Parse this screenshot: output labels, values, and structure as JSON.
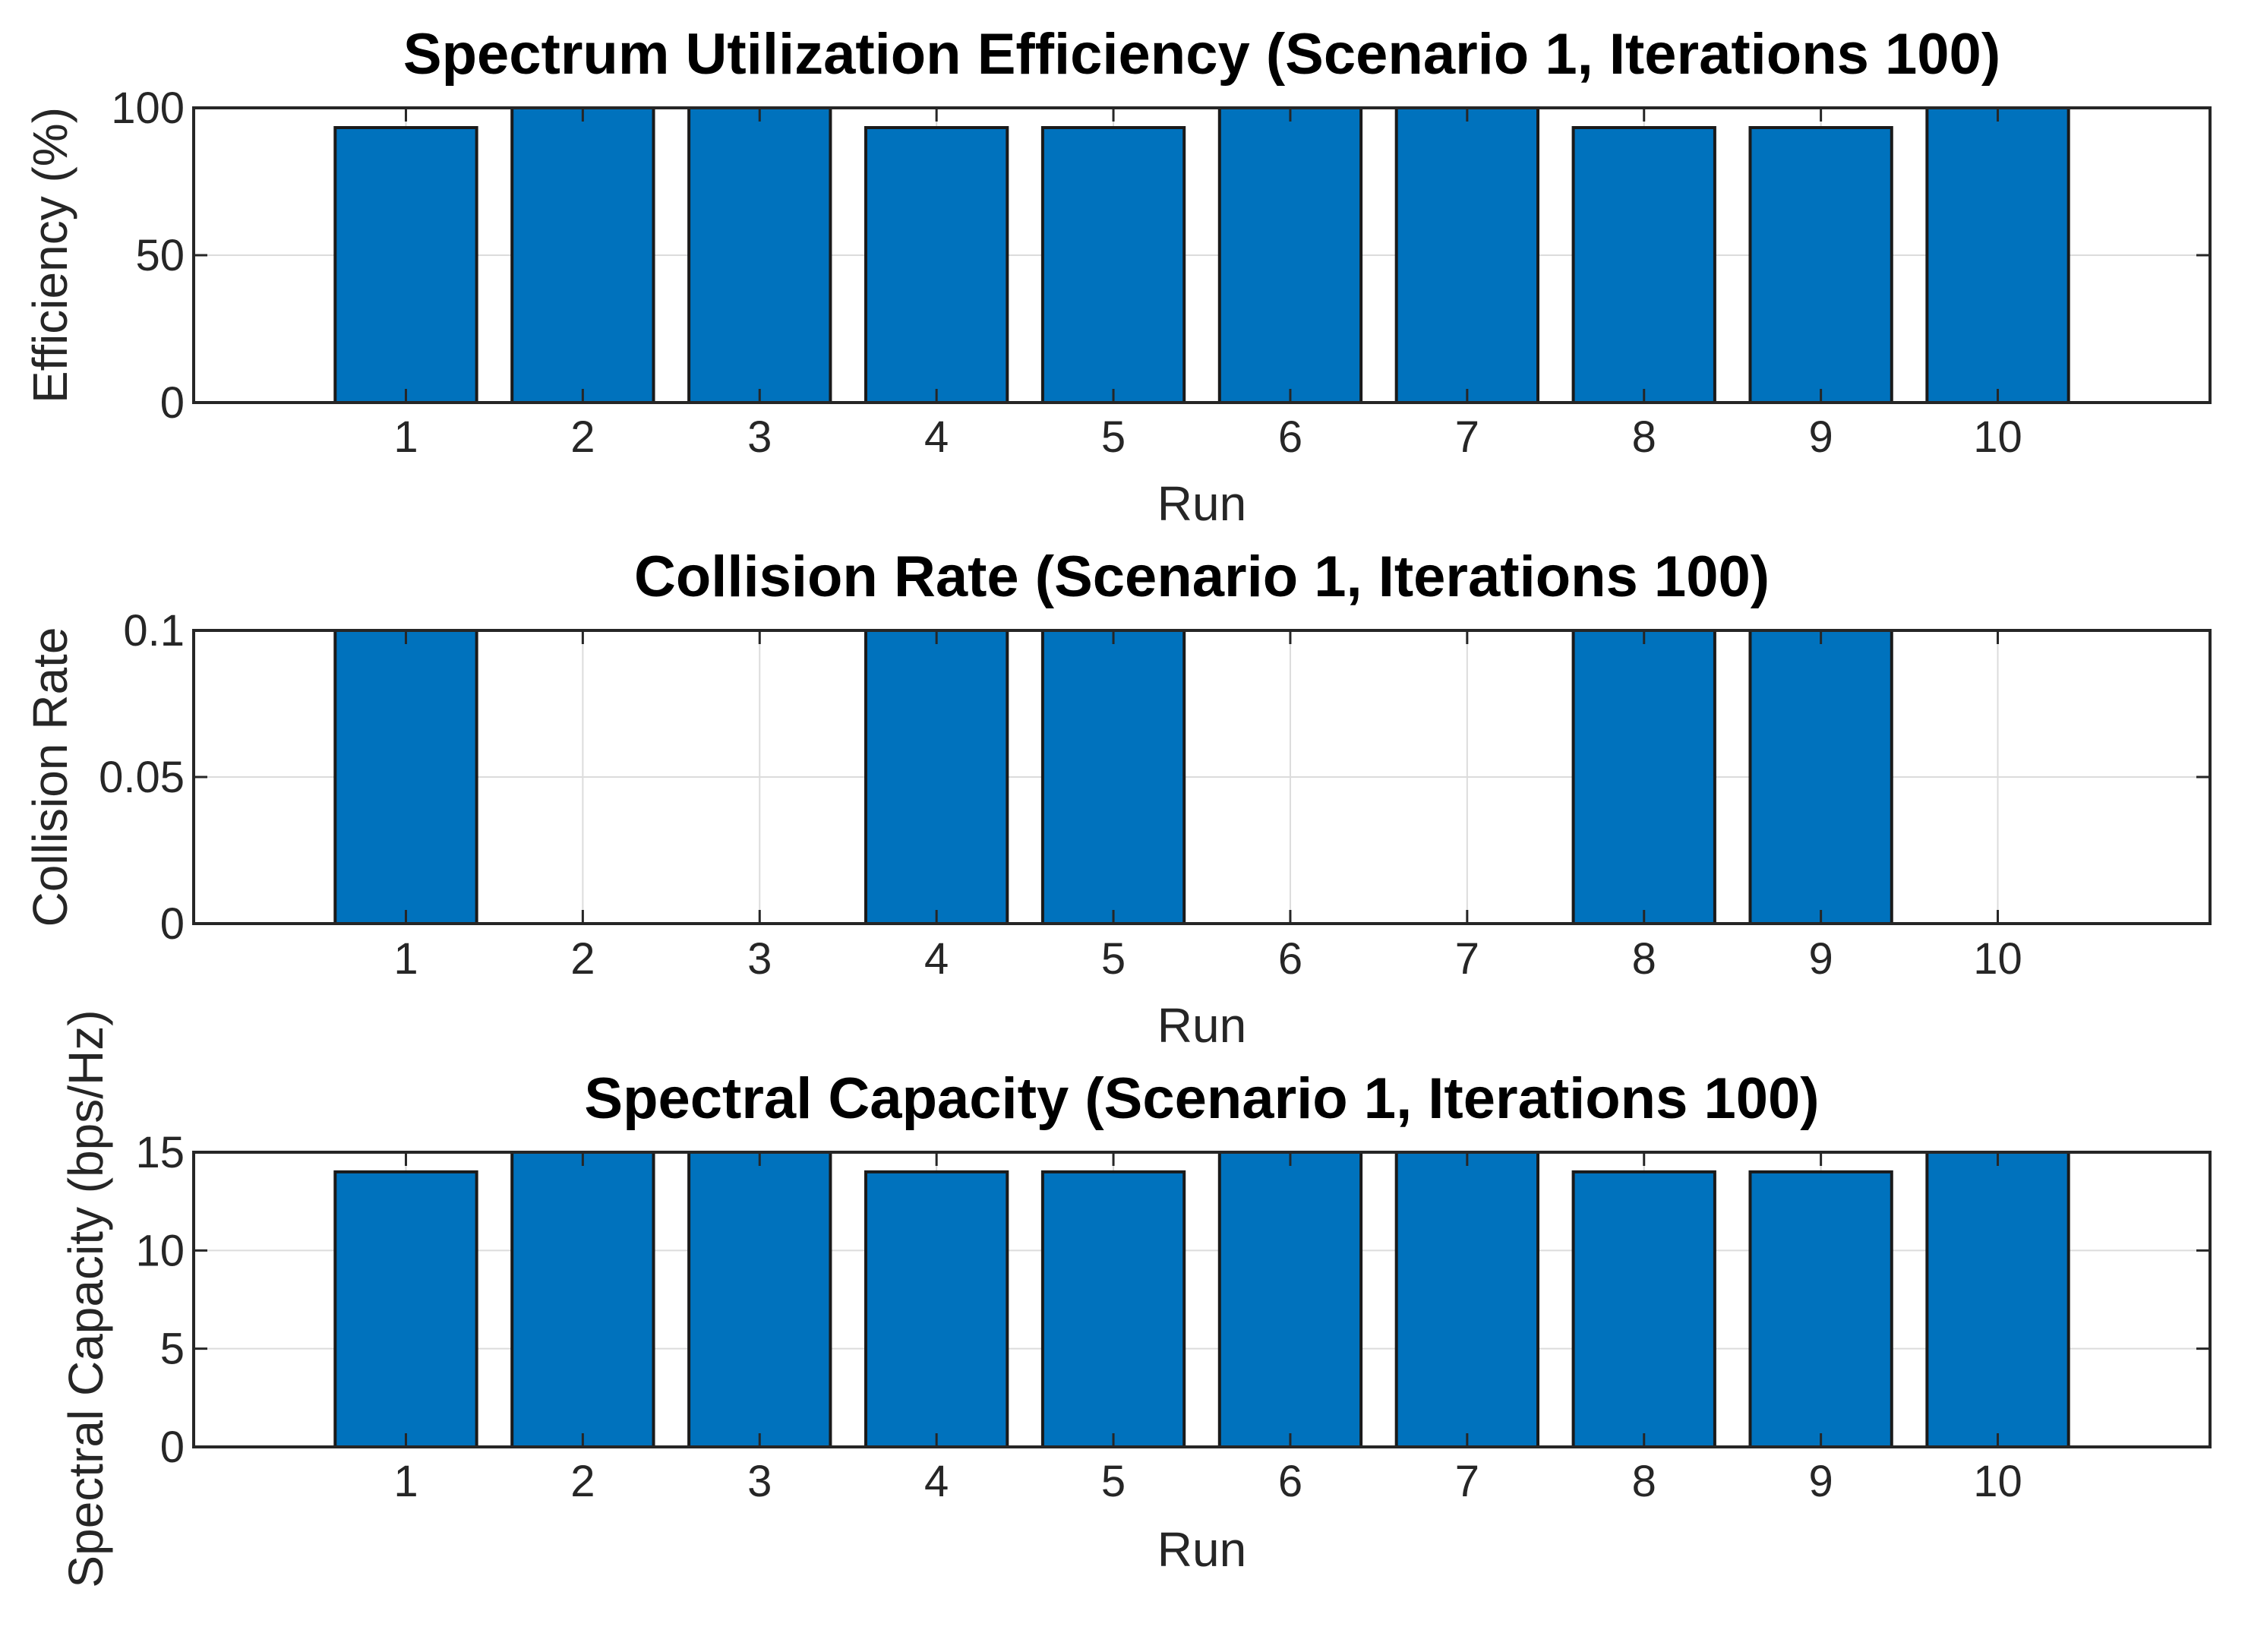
{
  "chart_data": [
    {
      "type": "bar",
      "title": "Spectrum Utilization Efficiency (Scenario 1, Iterations 100)",
      "xlabel": "Run",
      "ylabel": "Efficiency (%)",
      "categories": [
        "1",
        "2",
        "3",
        "4",
        "5",
        "6",
        "7",
        "8",
        "9",
        "10"
      ],
      "values": [
        93.3,
        100,
        100,
        93.3,
        93.3,
        100,
        100,
        93.3,
        93.3,
        100
      ],
      "ylim": [
        0,
        100
      ],
      "yticks": [
        0,
        50,
        100
      ],
      "ytick_labels": [
        "0",
        "50",
        "100"
      ],
      "grid": true
    },
    {
      "type": "bar",
      "title": "Collision Rate (Scenario 1, Iterations 100)",
      "xlabel": "Run",
      "ylabel": "Collision Rate",
      "categories": [
        "1",
        "2",
        "3",
        "4",
        "5",
        "6",
        "7",
        "8",
        "9",
        "10"
      ],
      "values": [
        0.1,
        0,
        0,
        0.1,
        0.1,
        0,
        0,
        0.1,
        0.1,
        0
      ],
      "ylim": [
        0,
        0.1
      ],
      "yticks": [
        0,
        0.05,
        0.1
      ],
      "ytick_labels": [
        "0",
        "0.05",
        "0.1"
      ],
      "grid": true
    },
    {
      "type": "bar",
      "title": "Spectral Capacity (Scenario 1, Iterations 100)",
      "xlabel": "Run",
      "ylabel": "Spectral Capacity (bps/Hz)",
      "categories": [
        "1",
        "2",
        "3",
        "4",
        "5",
        "6",
        "7",
        "8",
        "9",
        "10"
      ],
      "values": [
        14,
        15,
        15,
        14,
        14,
        15,
        15,
        14,
        14,
        15
      ],
      "ylim": [
        0,
        15
      ],
      "yticks": [
        0,
        5,
        10,
        15
      ],
      "ytick_labels": [
        "0",
        "5",
        "10",
        "15"
      ],
      "grid": true
    }
  ],
  "colors": {
    "bar_fill": "#0072BD",
    "bar_edge": "#1a1a1a",
    "axes": "#262626",
    "grid": "#dcdcdc",
    "background": "#ffffff"
  }
}
